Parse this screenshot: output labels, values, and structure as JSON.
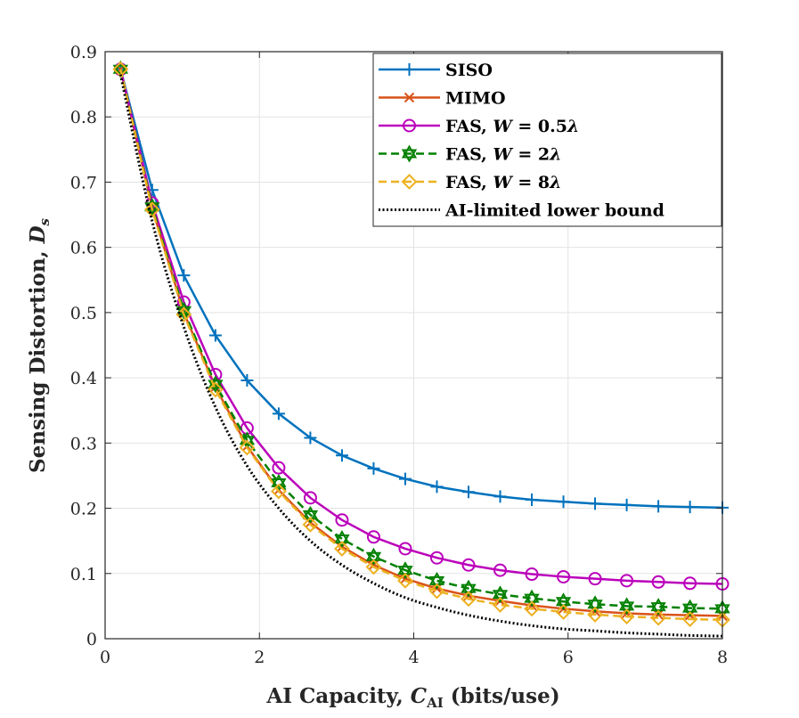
{
  "chart_data": {
    "type": "line",
    "title": "",
    "xlabel": "AI Capacity, C_AI (bits/use)",
    "xlabel_parts": {
      "pre": "AI Capacity, ",
      "var": "C",
      "sub": "AI",
      "post": " (bits/use)"
    },
    "ylabel": "Sensing Distortion, D_s",
    "ylabel_parts": {
      "pre": "Sensing Distortion, ",
      "var": "D",
      "sub": "s"
    },
    "xlim": [
      0,
      8
    ],
    "ylim": [
      0,
      0.9
    ],
    "xticks": [
      0,
      2,
      4,
      6,
      8
    ],
    "xtick_labels": [
      "0",
      "2",
      "4",
      "6",
      "8"
    ],
    "yticks": [
      0,
      0.1,
      0.2,
      0.3,
      0.4,
      0.5,
      0.6,
      0.7,
      0.8,
      0.9
    ],
    "ytick_labels": [
      "0",
      "0.1",
      "0.2",
      "0.3",
      "0.4",
      "0.5",
      "0.6",
      "0.7",
      "0.8",
      "0.9"
    ],
    "grid": true,
    "legend_position": "top-right",
    "x": [
      0.2,
      0.61,
      1.02,
      1.43,
      1.84,
      2.25,
      2.66,
      3.07,
      3.48,
      3.89,
      4.3,
      4.71,
      5.12,
      5.53,
      5.94,
      6.35,
      6.76,
      7.17,
      7.58,
      8.0
    ],
    "series": [
      {
        "name": "SISO",
        "legend": {
          "main": "SISO"
        },
        "color": "#0072BD",
        "dash": "",
        "marker": "plus",
        "values": [
          0.873,
          0.688,
          0.557,
          0.465,
          0.396,
          0.345,
          0.308,
          0.281,
          0.261,
          0.245,
          0.233,
          0.225,
          0.218,
          0.213,
          0.21,
          0.207,
          0.205,
          0.203,
          0.202,
          0.201
        ]
      },
      {
        "name": "MIMO",
        "legend": {
          "main": "MIMO"
        },
        "color": "#D95319",
        "dash": "",
        "marker": "x",
        "values": [
          0.873,
          0.66,
          0.5,
          0.386,
          0.295,
          0.228,
          0.178,
          0.141,
          0.113,
          0.092,
          0.077,
          0.066,
          0.058,
          0.051,
          0.046,
          0.042,
          0.039,
          0.037,
          0.036,
          0.035
        ]
      },
      {
        "name": "FAS, W = 0.5λ",
        "legend": {
          "main": "FAS, ",
          "var": "W",
          "eq": " = 0.5",
          "lam": "λ"
        },
        "color": "#BB00BB",
        "dash": "",
        "marker": "circle",
        "values": [
          0.873,
          0.668,
          0.516,
          0.405,
          0.323,
          0.262,
          0.216,
          0.182,
          0.156,
          0.138,
          0.124,
          0.113,
          0.105,
          0.099,
          0.095,
          0.092,
          0.089,
          0.087,
          0.085,
          0.084
        ]
      },
      {
        "name": "FAS, W = 2λ",
        "legend": {
          "main": "FAS, ",
          "var": "W",
          "eq": " = 2",
          "lam": "λ"
        },
        "color": "#008000",
        "dash": "9,5",
        "marker": "hexagram",
        "values": [
          0.873,
          0.662,
          0.503,
          0.39,
          0.304,
          0.239,
          0.19,
          0.153,
          0.126,
          0.105,
          0.089,
          0.077,
          0.068,
          0.062,
          0.057,
          0.053,
          0.05,
          0.049,
          0.047,
          0.046
        ]
      },
      {
        "name": "FAS, W = 8λ",
        "legend": {
          "main": "FAS, ",
          "var": "W",
          "eq": " = 8",
          "lam": "λ"
        },
        "color": "#EDB120",
        "dash": "9,5",
        "marker": "diamond",
        "values": [
          0.873,
          0.658,
          0.497,
          0.382,
          0.293,
          0.226,
          0.175,
          0.138,
          0.11,
          0.089,
          0.073,
          0.061,
          0.052,
          0.046,
          0.041,
          0.037,
          0.034,
          0.032,
          0.03,
          0.029
        ]
      },
      {
        "name": "AI-limited lower bound",
        "legend": {
          "main": "AI-limited lower bound"
        },
        "color": "#000000",
        "dash": "2,2.5",
        "marker": "none",
        "dense": true,
        "values": [
          0.865,
          0.64,
          0.478,
          0.355,
          0.265,
          0.2,
          0.15,
          0.113,
          0.085,
          0.063,
          0.048,
          0.036,
          0.027,
          0.02,
          0.015,
          0.012,
          0.009,
          0.007,
          0.005,
          0.004
        ]
      }
    ]
  }
}
